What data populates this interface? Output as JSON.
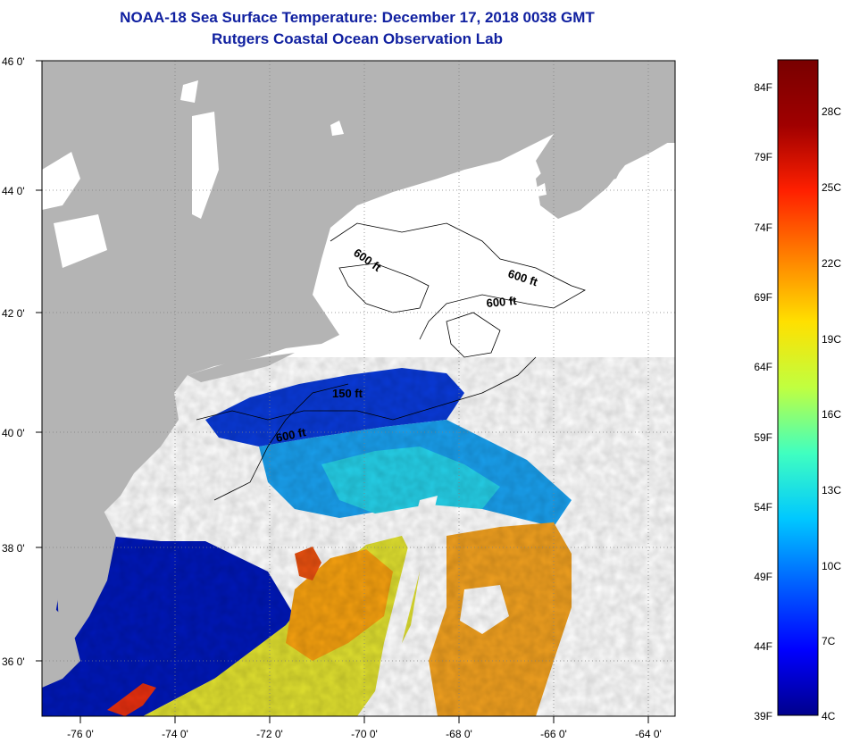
{
  "title": "NOAA-18 Sea Surface Temperature:  December 17, 2018 0038 GMT",
  "subtitle": "Rutgers Coastal Ocean Observation Lab",
  "map": {
    "lat_ticks": [
      "46 0'",
      "44 0'",
      "42 0'",
      "40 0'",
      "38 0'",
      "36 0'"
    ],
    "lon_ticks": [
      "-76 0'",
      "-74 0'",
      "-72 0'",
      "-70 0'",
      "-68 0'",
      "-66 0'",
      "-64 0'"
    ],
    "contour_labels": [
      "600 ft",
      "600 ft",
      "600 ft",
      "150 ft",
      "600 ft"
    ],
    "colors": {
      "land": "#b4b4b4",
      "cloud": "#ffffff"
    }
  },
  "colorbar": {
    "fahrenheit": [
      "84F",
      "79F",
      "74F",
      "69F",
      "64F",
      "59F",
      "54F",
      "49F",
      "44F",
      "39F"
    ],
    "celsius": [
      "28C",
      "25C",
      "22C",
      "19C",
      "16C",
      "13C",
      "10C",
      "7C",
      "4C"
    ],
    "gradient": [
      "#00008c",
      "#0000ff",
      "#0060ff",
      "#00c8ff",
      "#40ffc0",
      "#c0ff40",
      "#ffe000",
      "#ff8000",
      "#ff2000",
      "#a00000",
      "#780000"
    ]
  }
}
